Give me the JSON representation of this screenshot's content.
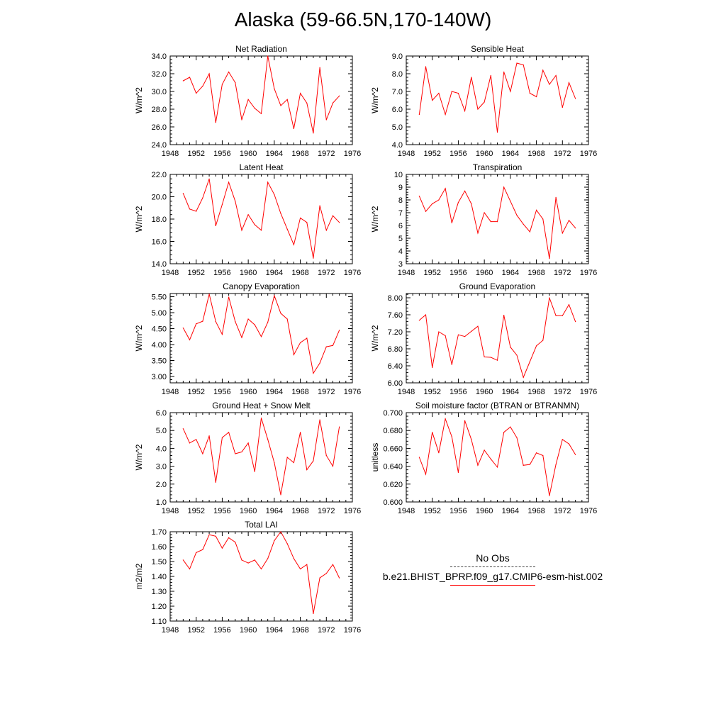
{
  "page_title": "Alaska (59-66.5N,170-140W)",
  "legend": {
    "obs_label": "No Obs",
    "model_label": "b.e21.BHIST_BPRP.f09_g17.CMIP6-esm-hist.002",
    "model_color": "#ff0000",
    "obs_color": "#444444"
  },
  "chart_data": [
    {
      "type": "line",
      "title": "Net Radiation",
      "ylabel": "W/m^2",
      "xlim": [
        1948,
        1976
      ],
      "ylim": [
        24.0,
        34.0
      ],
      "xticks": [
        "1948",
        "1952",
        "1956",
        "1960",
        "1964",
        "1968",
        "1972",
        "1976"
      ],
      "yticks": [
        "24.0",
        "26.0",
        "28.0",
        "30.0",
        "32.0",
        "34.0"
      ],
      "x": [
        1950,
        1951,
        1952,
        1953,
        1954,
        1955,
        1956,
        1957,
        1958,
        1959,
        1960,
        1961,
        1962,
        1963,
        1964,
        1965,
        1966,
        1967,
        1968,
        1969,
        1970,
        1971,
        1972,
        1973,
        1974
      ],
      "values": [
        31.2,
        31.6,
        29.8,
        30.6,
        32.0,
        26.5,
        30.8,
        32.2,
        31.0,
        26.8,
        29.1,
        28.1,
        27.5,
        34.0,
        30.3,
        28.4,
        29.1,
        25.8,
        29.8,
        28.7,
        25.3,
        32.7,
        26.8,
        28.7,
        29.5
      ]
    },
    {
      "type": "line",
      "title": "Sensible Heat",
      "ylabel": "W/m^2",
      "xlim": [
        1948,
        1976
      ],
      "ylim": [
        4.0,
        9.0
      ],
      "xticks": [
        "1948",
        "1952",
        "1956",
        "1960",
        "1964",
        "1968",
        "1972",
        "1976"
      ],
      "yticks": [
        "4.0",
        "5.0",
        "6.0",
        "7.0",
        "8.0",
        "9.0"
      ],
      "x": [
        1950,
        1951,
        1952,
        1953,
        1954,
        1955,
        1956,
        1957,
        1958,
        1959,
        1960,
        1961,
        1962,
        1963,
        1964,
        1965,
        1966,
        1967,
        1968,
        1969,
        1970,
        1971,
        1972,
        1973,
        1974
      ],
      "values": [
        5.7,
        8.4,
        6.5,
        6.9,
        5.7,
        7.0,
        6.9,
        5.9,
        7.8,
        6.0,
        6.4,
        7.9,
        4.7,
        8.1,
        7.0,
        8.6,
        8.5,
        6.9,
        6.7,
        8.2,
        7.4,
        7.9,
        6.1,
        7.5,
        6.6
      ]
    },
    {
      "type": "line",
      "title": "Latent Heat",
      "ylabel": "W/m^2",
      "xlim": [
        1948,
        1976
      ],
      "ylim": [
        14.0,
        22.0
      ],
      "xticks": [
        "1948",
        "1952",
        "1956",
        "1960",
        "1964",
        "1968",
        "1972",
        "1976"
      ],
      "yticks": [
        "14.0",
        "16.0",
        "18.0",
        "20.0",
        "22.0"
      ],
      "x": [
        1950,
        1951,
        1952,
        1953,
        1954,
        1955,
        1956,
        1957,
        1958,
        1959,
        1960,
        1961,
        1962,
        1963,
        1964,
        1965,
        1966,
        1967,
        1968,
        1969,
        1970,
        1971,
        1972,
        1973,
        1974
      ],
      "values": [
        20.3,
        18.9,
        18.7,
        19.9,
        21.6,
        17.4,
        19.3,
        21.3,
        19.6,
        17.0,
        18.4,
        17.5,
        17.0,
        21.3,
        20.2,
        18.5,
        17.1,
        15.7,
        18.1,
        17.7,
        14.5,
        19.2,
        17.0,
        18.3,
        17.7
      ]
    },
    {
      "type": "line",
      "title": "Transpiration",
      "ylabel": "W/m^2",
      "xlim": [
        1948,
        1976
      ],
      "ylim": [
        3,
        10
      ],
      "xticks": [
        "1948",
        "1952",
        "1956",
        "1960",
        "1964",
        "1968",
        "1972",
        "1976"
      ],
      "yticks": [
        "3",
        "4",
        "5",
        "6",
        "7",
        "8",
        "9",
        "10"
      ],
      "x": [
        1950,
        1951,
        1952,
        1953,
        1954,
        1955,
        1956,
        1957,
        1958,
        1959,
        1960,
        1961,
        1962,
        1963,
        1964,
        1965,
        1966,
        1967,
        1968,
        1969,
        1970,
        1971,
        1972,
        1973,
        1974
      ],
      "values": [
        8.3,
        7.1,
        7.7,
        8.0,
        8.9,
        6.2,
        7.8,
        8.7,
        7.7,
        5.4,
        7.0,
        6.3,
        6.3,
        9.0,
        7.9,
        6.8,
        6.1,
        5.5,
        7.2,
        6.5,
        3.4,
        8.2,
        5.4,
        6.4,
        5.8
      ]
    },
    {
      "type": "line",
      "title": "Canopy Evaporation",
      "ylabel": "W/m^2",
      "xlim": [
        1948,
        1976
      ],
      "ylim": [
        2.8,
        5.6
      ],
      "xticks": [
        "1948",
        "1952",
        "1956",
        "1960",
        "1964",
        "1968",
        "1972",
        "1976"
      ],
      "yticks": [
        "3.00",
        "3.50",
        "4.00",
        "4.50",
        "5.00",
        "5.50"
      ],
      "x": [
        1950,
        1951,
        1952,
        1953,
        1954,
        1955,
        1956,
        1957,
        1958,
        1959,
        1960,
        1961,
        1962,
        1963,
        1964,
        1965,
        1966,
        1967,
        1968,
        1969,
        1970,
        1971,
        1972,
        1973,
        1974
      ],
      "values": [
        4.52,
        4.15,
        4.65,
        4.73,
        5.58,
        4.72,
        4.32,
        5.49,
        4.72,
        4.22,
        4.8,
        4.62,
        4.25,
        4.7,
        5.53,
        4.98,
        4.8,
        3.68,
        4.06,
        4.2,
        3.1,
        3.42,
        3.93,
        3.97,
        4.45
      ]
    },
    {
      "type": "line",
      "title": "Ground Evaporation",
      "ylabel": "W/m^2",
      "xlim": [
        1948,
        1976
      ],
      "ylim": [
        6.0,
        8.1
      ],
      "xticks": [
        "1948",
        "1952",
        "1956",
        "1960",
        "1964",
        "1968",
        "1972",
        "1976"
      ],
      "yticks": [
        "6.00",
        "6.40",
        "6.80",
        "7.20",
        "7.60",
        "8.00"
      ],
      "x": [
        1950,
        1951,
        1952,
        1953,
        1954,
        1955,
        1956,
        1957,
        1958,
        1959,
        1960,
        1961,
        1962,
        1963,
        1964,
        1965,
        1966,
        1967,
        1968,
        1969,
        1970,
        1971,
        1972,
        1973,
        1974
      ],
      "values": [
        7.47,
        7.6,
        6.36,
        7.2,
        7.11,
        6.43,
        7.13,
        7.09,
        7.21,
        7.33,
        6.61,
        6.6,
        6.53,
        7.59,
        6.84,
        6.65,
        6.13,
        6.5,
        6.87,
        7.0,
        8.0,
        7.58,
        7.58,
        7.84,
        7.44
      ]
    },
    {
      "type": "line",
      "title": "Ground Heat + Snow Melt",
      "ylabel": "W/m^2",
      "xlim": [
        1948,
        1976
      ],
      "ylim": [
        1.0,
        6.0
      ],
      "xticks": [
        "1948",
        "1952",
        "1956",
        "1960",
        "1964",
        "1968",
        "1972",
        "1976"
      ],
      "yticks": [
        "1.0",
        "2.0",
        "3.0",
        "4.0",
        "5.0",
        "6.0"
      ],
      "x": [
        1950,
        1951,
        1952,
        1953,
        1954,
        1955,
        1956,
        1957,
        1958,
        1959,
        1960,
        1961,
        1962,
        1963,
        1964,
        1965,
        1966,
        1967,
        1968,
        1969,
        1970,
        1971,
        1972,
        1973,
        1974
      ],
      "values": [
        5.1,
        4.3,
        4.5,
        3.7,
        4.7,
        2.1,
        4.6,
        4.9,
        3.7,
        3.8,
        4.3,
        2.7,
        5.7,
        4.5,
        3.2,
        1.4,
        3.5,
        3.2,
        4.9,
        2.8,
        3.3,
        5.6,
        3.6,
        3.0,
        5.2
      ]
    },
    {
      "type": "line",
      "title": "Soil moisture factor (BTRAN or BTRANMN)",
      "ylabel": "unitless",
      "xlim": [
        1948,
        1976
      ],
      "ylim": [
        0.6,
        0.7
      ],
      "xticks": [
        "1948",
        "1952",
        "1956",
        "1960",
        "1964",
        "1968",
        "1972",
        "1976"
      ],
      "yticks": [
        "0.600",
        "0.620",
        "0.640",
        "0.660",
        "0.680",
        "0.700"
      ],
      "x": [
        1950,
        1951,
        1952,
        1953,
        1954,
        1955,
        1956,
        1957,
        1958,
        1959,
        1960,
        1961,
        1962,
        1963,
        1964,
        1965,
        1966,
        1967,
        1968,
        1969,
        1970,
        1971,
        1972,
        1973,
        1974
      ],
      "values": [
        0.65,
        0.631,
        0.678,
        0.655,
        0.693,
        0.673,
        0.633,
        0.691,
        0.67,
        0.641,
        0.658,
        0.648,
        0.639,
        0.678,
        0.684,
        0.672,
        0.641,
        0.642,
        0.655,
        0.652,
        0.607,
        0.642,
        0.67,
        0.665,
        0.653
      ]
    },
    {
      "type": "line",
      "title": "Total LAI",
      "ylabel": "m2/m2",
      "xlim": [
        1948,
        1976
      ],
      "ylim": [
        1.1,
        1.7
      ],
      "xticks": [
        "1948",
        "1952",
        "1956",
        "1960",
        "1964",
        "1968",
        "1972",
        "1976"
      ],
      "yticks": [
        "1.10",
        "1.20",
        "1.30",
        "1.40",
        "1.50",
        "1.60",
        "1.70"
      ],
      "x": [
        1950,
        1951,
        1952,
        1953,
        1954,
        1955,
        1956,
        1957,
        1958,
        1959,
        1960,
        1961,
        1962,
        1963,
        1964,
        1965,
        1966,
        1967,
        1968,
        1969,
        1970,
        1971,
        1972,
        1973,
        1974
      ],
      "values": [
        1.51,
        1.45,
        1.56,
        1.58,
        1.68,
        1.67,
        1.59,
        1.66,
        1.63,
        1.51,
        1.49,
        1.51,
        1.45,
        1.52,
        1.64,
        1.7,
        1.62,
        1.52,
        1.45,
        1.48,
        1.15,
        1.39,
        1.42,
        1.48,
        1.39
      ]
    }
  ]
}
